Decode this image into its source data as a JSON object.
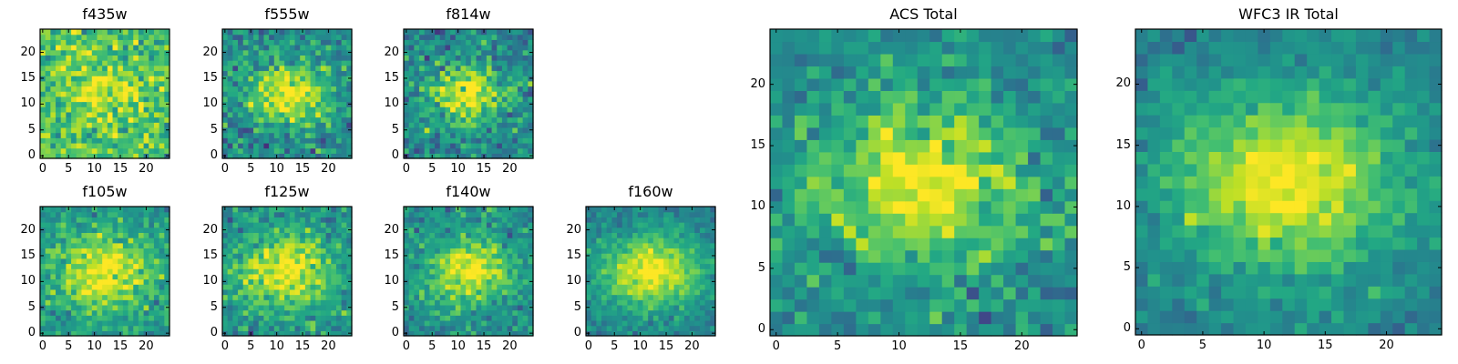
{
  "chart_data": {
    "type": "heatmap",
    "colormap": "viridis",
    "grid_size": [
      25,
      25
    ],
    "extent": [
      -0.5,
      24.5,
      -0.5,
      24.5
    ],
    "origin": "lower",
    "source_center": [
      12,
      12
    ],
    "panels": [
      {
        "id": "f435w",
        "title": "f435w",
        "xticks": [
          "0",
          "5",
          "10",
          "15",
          "20"
        ],
        "yticks": [
          "0",
          "5",
          "10",
          "15",
          "20"
        ],
        "background": 0.7,
        "noise": 0.13,
        "peak": 0.22,
        "width": 4.0,
        "seed": 11
      },
      {
        "id": "f555w",
        "title": "f555w",
        "xticks": [
          "0",
          "5",
          "10",
          "15",
          "20"
        ],
        "yticks": [
          "0",
          "5",
          "10",
          "15",
          "20"
        ],
        "background": 0.48,
        "noise": 0.12,
        "peak": 0.5,
        "width": 4.0,
        "seed": 23
      },
      {
        "id": "f814w",
        "title": "f814w",
        "xticks": [
          "0",
          "5",
          "10",
          "15",
          "20"
        ],
        "yticks": [
          "0",
          "5",
          "10",
          "15",
          "20"
        ],
        "background": 0.46,
        "noise": 0.12,
        "peak": 0.52,
        "width": 4.0,
        "seed": 37
      },
      {
        "id": "f105w",
        "title": "f105w",
        "xticks": [
          "0",
          "5",
          "10",
          "15",
          "20"
        ],
        "yticks": [
          "0",
          "5",
          "10",
          "15",
          "20"
        ],
        "background": 0.52,
        "noise": 0.1,
        "peak": 0.48,
        "width": 5.0,
        "seed": 41
      },
      {
        "id": "f125w",
        "title": "f125w",
        "xticks": [
          "0",
          "5",
          "10",
          "15",
          "20"
        ],
        "yticks": [
          "0",
          "5",
          "10",
          "15",
          "20"
        ],
        "background": 0.5,
        "noise": 0.1,
        "peak": 0.48,
        "width": 5.0,
        "seed": 53
      },
      {
        "id": "f140w",
        "title": "f140w",
        "xticks": [
          "0",
          "5",
          "10",
          "15",
          "20"
        ],
        "yticks": [
          "0",
          "5",
          "10",
          "15",
          "20"
        ],
        "background": 0.48,
        "noise": 0.1,
        "peak": 0.5,
        "width": 4.5,
        "seed": 67
      },
      {
        "id": "f160w",
        "title": "f160w",
        "xticks": [
          "0",
          "5",
          "10",
          "15",
          "20"
        ],
        "yticks": [
          "0",
          "5",
          "10",
          "15",
          "20"
        ],
        "background": 0.44,
        "noise": 0.07,
        "peak": 0.56,
        "width": 5.0,
        "seed": 79
      },
      {
        "id": "acs_total",
        "title": "ACS Total",
        "xticks": [
          "0",
          "5",
          "10",
          "15",
          "20"
        ],
        "yticks": [
          "0",
          "5",
          "10",
          "15",
          "20"
        ],
        "background": 0.48,
        "noise": 0.1,
        "peak": 0.52,
        "width": 4.5,
        "seed": 83
      },
      {
        "id": "wfc3_total",
        "title": "WFC3 IR Total",
        "xticks": [
          "0",
          "5",
          "10",
          "15",
          "20"
        ],
        "yticks": [
          "0",
          "5",
          "10",
          "15",
          "20"
        ],
        "background": 0.44,
        "noise": 0.06,
        "peak": 0.56,
        "width": 5.0,
        "seed": 97
      }
    ]
  }
}
